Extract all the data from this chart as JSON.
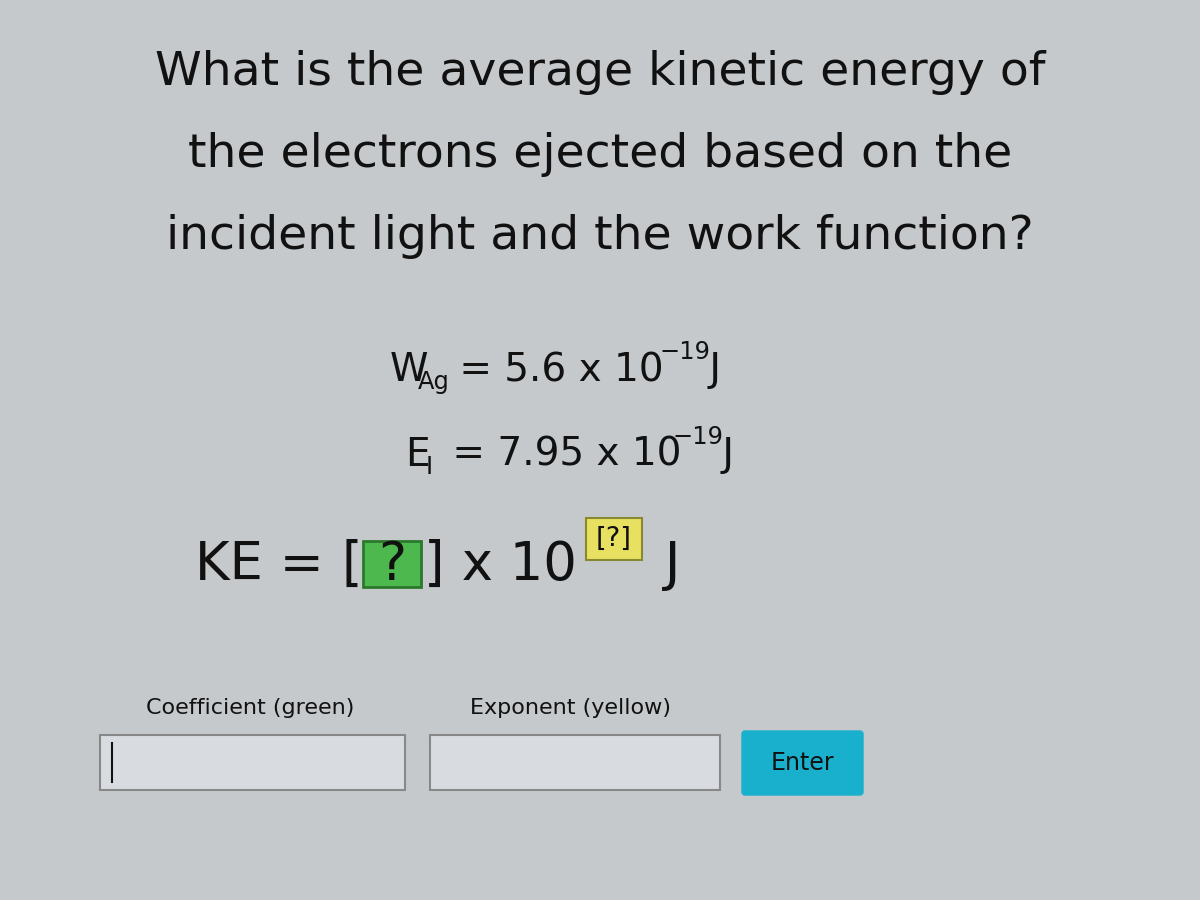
{
  "bg_color": "#c5c9cc",
  "title_lines": [
    "What is the average kinetic energy of",
    "the electrons ejected based on the",
    "incident light and the work function?"
  ],
  "title_fontsize": 34,
  "title_color": "#111111",
  "eq_fontsize": 28,
  "eq3_fontsize": 38,
  "green_box_color": "#4db84d",
  "yellow_box_color": "#e8e060",
  "enter_bg": "#18b0cc",
  "enter_color": "#111111",
  "label_coeff": "Coefficient (green)",
  "label_exp": "Exponent (yellow)",
  "label_fontsize": 16,
  "enter_text": "Enter",
  "enter_fontsize": 17
}
